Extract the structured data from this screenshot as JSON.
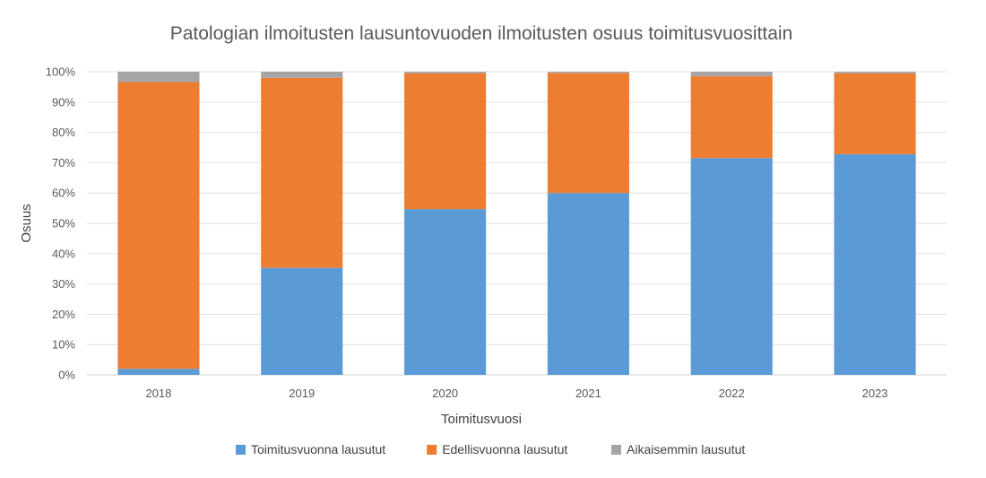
{
  "chart_data": {
    "type": "bar",
    "stacked": true,
    "title": "Patologian ilmoitusten lausuntovuoden ilmoitusten osuus toimitusvuosittain",
    "xlabel": "Toimitusvuosi",
    "ylabel": "Osuus",
    "categories": [
      "2018",
      "2019",
      "2020",
      "2021",
      "2022",
      "2023"
    ],
    "yticks": [
      "0%",
      "10%",
      "20%",
      "30%",
      "40%",
      "50%",
      "60%",
      "70%",
      "80%",
      "90%",
      "100%"
    ],
    "ylim": [
      0,
      100
    ],
    "grid": true,
    "legend_position": "bottom",
    "series": [
      {
        "name": "Toimitusvuonna lausutut",
        "color": "#5B9BD5",
        "values": [
          2,
          35.3,
          54.7,
          60,
          71.5,
          72.8
        ]
      },
      {
        "name": "Edellisvuonna lausutut",
        "color": "#ED7D31",
        "values": [
          94.6,
          62.7,
          44.8,
          39.6,
          27,
          26.7
        ]
      },
      {
        "name": "Aikaisemmin lausutut",
        "color": "#A5A5A5",
        "values": [
          3.4,
          2,
          0.5,
          0.4,
          1.5,
          0.5
        ]
      }
    ]
  }
}
